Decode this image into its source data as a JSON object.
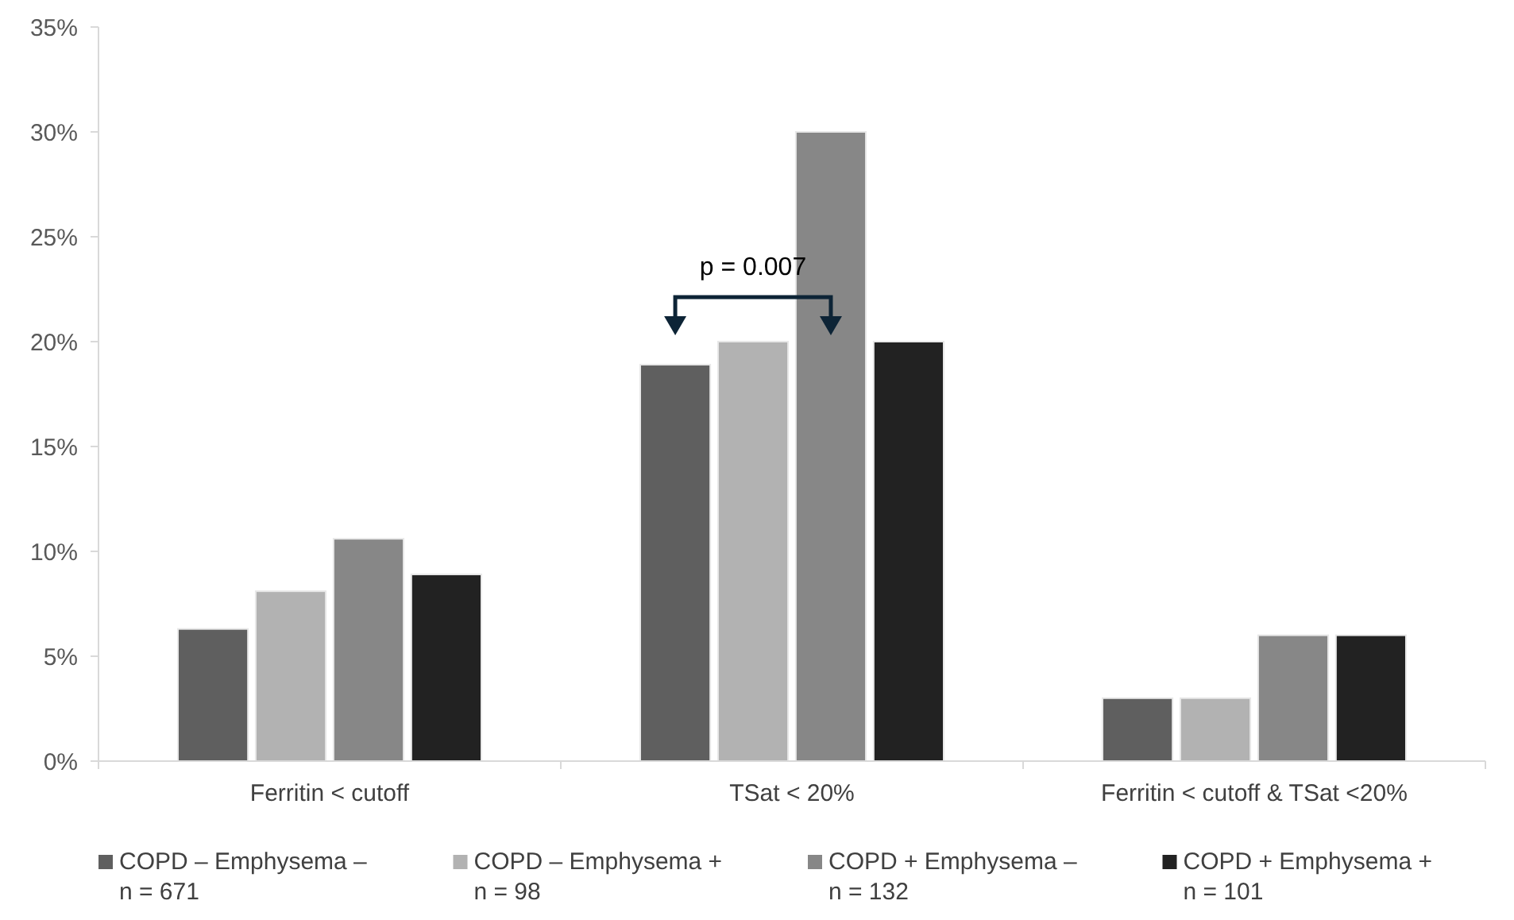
{
  "chart_data": {
    "type": "bar",
    "categories": [
      "Ferritin < cutoff",
      "TSat < 20%",
      "Ferritin < cutoff & TSat <20%"
    ],
    "series": [
      {
        "name": "COPD – Emphysema –\nn = 671",
        "color": "#5f5f5f",
        "values": [
          6.3,
          18.9,
          3
        ]
      },
      {
        "name": "COPD – Emphysema +\nn = 98",
        "color": "#b2b2b2",
        "values": [
          8.1,
          20,
          3
        ]
      },
      {
        "name": "COPD + Emphysema –\nn = 132",
        "color": "#878787",
        "values": [
          10.6,
          30,
          6
        ]
      },
      {
        "name": "COPD + Emphysema +\nn = 101",
        "color": "#222222",
        "values": [
          8.9,
          20,
          6
        ]
      }
    ],
    "ylim": [
      0,
      35
    ],
    "yticks": [
      {
        "value": 0,
        "label": "0%"
      },
      {
        "value": 5,
        "label": "5%"
      },
      {
        "value": 10,
        "label": "10%"
      },
      {
        "value": 15,
        "label": "15%"
      },
      {
        "value": 20,
        "label": "20%"
      },
      {
        "value": 25,
        "label": "25%"
      },
      {
        "value": 30,
        "label": "30%"
      },
      {
        "value": 35,
        "label": "35%"
      }
    ],
    "grid": false,
    "legend": "bottom",
    "annotations": [
      "p = 0.007"
    ]
  }
}
